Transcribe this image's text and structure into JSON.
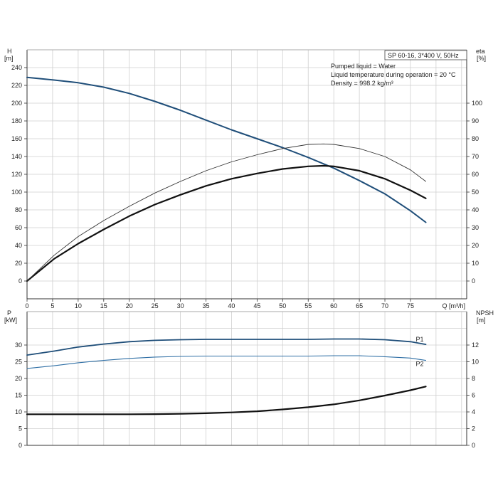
{
  "chart_data": [
    {
      "type": "line",
      "title": "SP 60-16, 3*400 V, 50Hz",
      "annotations": [
        "Pumped liquid = Water",
        "Liquid temperature during operation = 20 °C",
        "Density = 998.2 kg/m³"
      ],
      "xlabel": "Q [m³/h]",
      "xlim": [
        0,
        86
      ],
      "xticks": [
        0,
        5,
        10,
        15,
        20,
        25,
        30,
        35,
        40,
        45,
        50,
        55,
        60,
        65,
        70,
        75
      ],
      "ylabel_left": [
        "H",
        "[m]"
      ],
      "ylim_left": [
        0,
        260
      ],
      "yticks_left": [
        0,
        20,
        40,
        60,
        80,
        100,
        120,
        140,
        160,
        180,
        200,
        220,
        240
      ],
      "ylabel_right": [
        "eta",
        "[%]"
      ],
      "ylim_right": [
        0,
        130
      ],
      "yticks_right": [
        0,
        10,
        20,
        30,
        40,
        50,
        60,
        70,
        80,
        90,
        100
      ],
      "grid": true,
      "series": [
        {
          "axis": "left",
          "color": "#1f4e79",
          "width": 2,
          "x": [
            0,
            5.3,
            10,
            15,
            20,
            25,
            30,
            35,
            40,
            45,
            50,
            55,
            60,
            65,
            70,
            75,
            78
          ],
          "y": [
            229,
            226,
            223,
            218,
            211,
            202,
            192,
            181,
            170,
            160,
            150,
            139,
            127,
            113,
            98,
            79,
            66
          ]
        },
        {
          "axis": "right",
          "color": "#111111",
          "width": 2.2,
          "x": [
            0,
            5.3,
            10,
            15,
            20,
            25,
            30,
            35,
            40,
            45,
            50,
            55,
            58,
            60,
            65,
            70,
            75,
            78
          ],
          "y": [
            0,
            12.5,
            21,
            29,
            36.5,
            43,
            48.5,
            53.5,
            57.5,
            60.5,
            63,
            64.5,
            64.8,
            64.5,
            62,
            57.5,
            51,
            46.5
          ]
        },
        {
          "axis": "right",
          "color": "#333333",
          "width": 0.9,
          "x": [
            0,
            5.3,
            10,
            15,
            20,
            25,
            30,
            35,
            40,
            45,
            50,
            55,
            58,
            60,
            65,
            70,
            75,
            78
          ],
          "y": [
            0,
            14.5,
            25,
            34,
            42,
            49.5,
            56,
            62,
            67,
            71,
            74.5,
            76.8,
            77.1,
            76.8,
            74.5,
            70,
            62.5,
            56
          ]
        }
      ]
    },
    {
      "type": "line",
      "xlim": [
        0,
        86
      ],
      "ylabel_left": [
        "P",
        "[kW]"
      ],
      "ylim_left": [
        0,
        40
      ],
      "yticks_left": [
        0,
        5,
        10,
        15,
        20,
        25,
        30
      ],
      "ylabel_right": [
        "NPSH",
        "[m]"
      ],
      "ylim_right": [
        0,
        16
      ],
      "yticks_right": [
        0,
        2,
        4,
        6,
        8,
        10,
        12
      ],
      "grid": true,
      "series": [
        {
          "name": "P1",
          "axis": "left",
          "color": "#1f4e79",
          "width": 1.8,
          "x": [
            0,
            5.3,
            10,
            15,
            20,
            25,
            30,
            35,
            40,
            45,
            50,
            55,
            60,
            65,
            70,
            75,
            78
          ],
          "y": [
            27,
            28.2,
            29.4,
            30.3,
            31,
            31.4,
            31.6,
            31.7,
            31.7,
            31.7,
            31.7,
            31.7,
            31.8,
            31.8,
            31.6,
            31,
            30.2
          ]
        },
        {
          "name": "P2",
          "axis": "left",
          "color": "#2f6fa5",
          "width": 1.1,
          "x": [
            0,
            5.3,
            10,
            15,
            20,
            25,
            30,
            35,
            40,
            45,
            50,
            55,
            60,
            65,
            70,
            75,
            78
          ],
          "y": [
            23,
            23.8,
            24.7,
            25.4,
            26,
            26.4,
            26.6,
            26.7,
            26.7,
            26.7,
            26.7,
            26.7,
            26.8,
            26.8,
            26.5,
            26.1,
            25.4
          ]
        },
        {
          "axis": "right",
          "color": "#111111",
          "width": 2.2,
          "x": [
            0,
            5.3,
            10,
            15,
            20,
            25,
            30,
            35,
            40,
            45,
            50,
            55,
            60,
            65,
            70,
            75,
            78
          ],
          "y": [
            3.72,
            3.72,
            3.72,
            3.72,
            3.72,
            3.74,
            3.78,
            3.84,
            3.94,
            4.08,
            4.3,
            4.56,
            4.9,
            5.38,
            5.96,
            6.6,
            7.04
          ]
        }
      ]
    }
  ]
}
